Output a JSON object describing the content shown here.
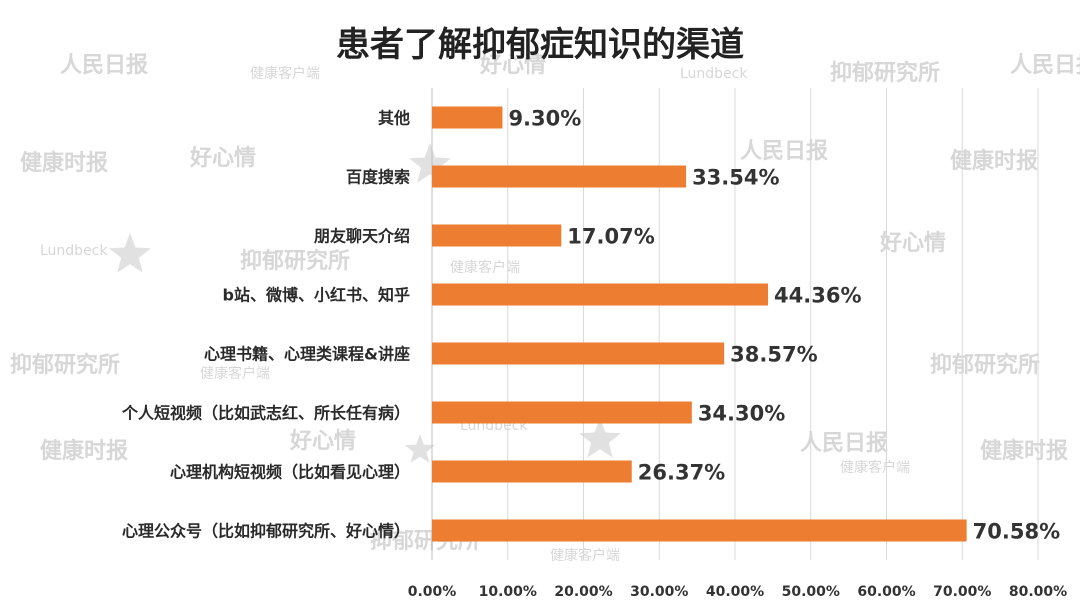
{
  "chart_data": {
    "type": "bar",
    "orientation": "horizontal",
    "title": "患者了解抑郁症知识的渠道",
    "categories": [
      "其他",
      "百度搜索",
      "朋友聊天介绍",
      "b站、微博、小红书、知乎",
      "心理书籍、心理类课程&讲座",
      "个人短视频（比如武志红、所长任有病）",
      "心理机构短视频（比如看见心理）",
      "心理公众号（比如抑郁研究所、好心情）"
    ],
    "values": [
      9.3,
      33.54,
      17.07,
      44.36,
      38.57,
      34.3,
      26.37,
      70.58
    ],
    "data_labels": [
      "9.30%",
      "33.54%",
      "17.07%",
      "44.36%",
      "38.57%",
      "34.30%",
      "26.37%",
      "70.58%"
    ],
    "xlim": [
      0,
      80
    ],
    "xticks": [
      "0.00%",
      "10.00%",
      "20.00%",
      "30.00%",
      "40.00%",
      "50.00%",
      "60.00%",
      "70.00%",
      "80.00%"
    ],
    "grid": true,
    "legend": "none",
    "bar_color": "#ED7D31"
  },
  "watermarks": {
    "people_daily": "人民日报",
    "health_client": "健康客户端",
    "health_times": "健康时报",
    "good_mood": "好心情",
    "depression_institute": "抑郁研究所",
    "lundbeck": "Lundbeck"
  }
}
